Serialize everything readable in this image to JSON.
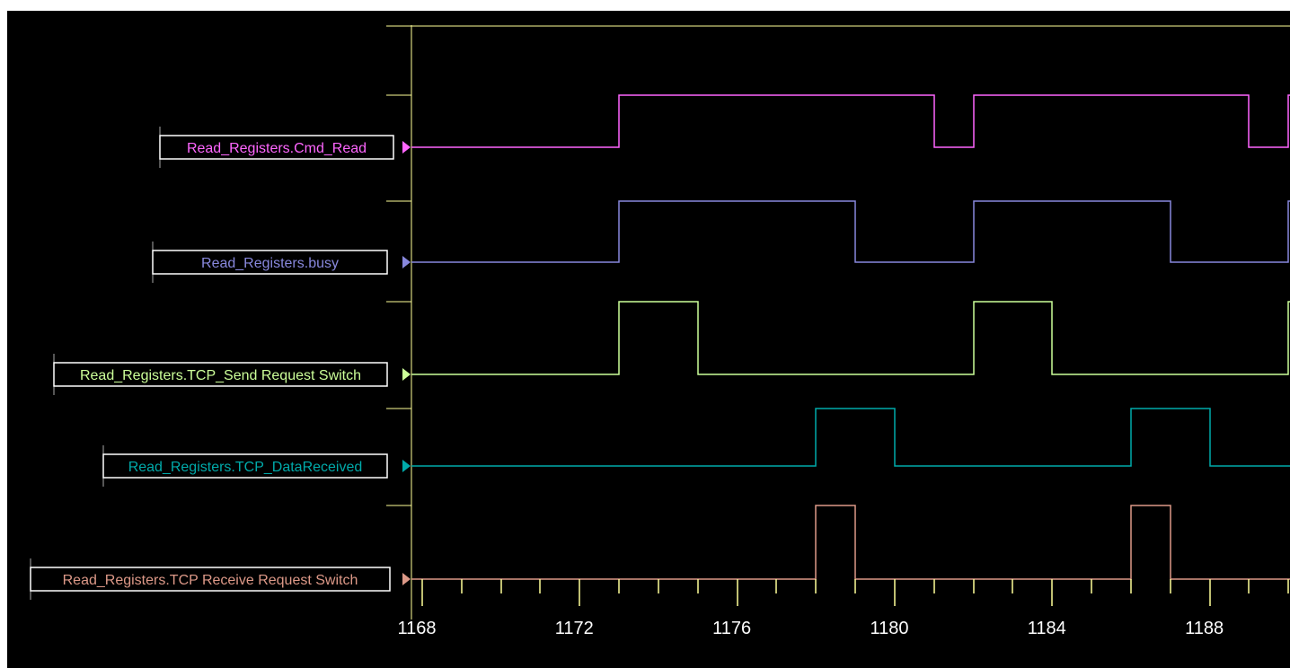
{
  "chart_data": {
    "type": "line",
    "title": "",
    "xlabel": "",
    "ylabel": "",
    "x_range": [
      1167,
      1191
    ],
    "x_ticks": [
      1168,
      1172,
      1176,
      1180,
      1184,
      1188
    ],
    "grid": false,
    "series": [
      {
        "name": "Read_Registers.Cmd_Read",
        "color": "#ff66ff",
        "transitions": [
          [
            1167,
            0
          ],
          [
            1173,
            1
          ],
          [
            1181,
            0
          ],
          [
            1182,
            1
          ],
          [
            1189,
            0
          ],
          [
            1190,
            1
          ]
        ]
      },
      {
        "name": "Read_Registers.busy",
        "color": "#8888dd",
        "transitions": [
          [
            1167,
            0
          ],
          [
            1173,
            1
          ],
          [
            1179,
            0
          ],
          [
            1182,
            1
          ],
          [
            1187,
            0
          ],
          [
            1190,
            1
          ]
        ]
      },
      {
        "name": "Read_Registers.TCP_Send Request Switch",
        "color": "#ccff99",
        "transitions": [
          [
            1167,
            0
          ],
          [
            1173,
            1
          ],
          [
            1175,
            0
          ],
          [
            1182,
            1
          ],
          [
            1184,
            0
          ],
          [
            1190,
            1
          ]
        ]
      },
      {
        "name": "Read_Registers.TCP_DataReceived",
        "color": "#00aaaa",
        "transitions": [
          [
            1167,
            0
          ],
          [
            1178,
            1
          ],
          [
            1180,
            0
          ],
          [
            1186,
            1
          ],
          [
            1188,
            0
          ]
        ]
      },
      {
        "name": "Read_Registers.TCP Receive Request Switch",
        "color": "#dd9988",
        "transitions": [
          [
            1167,
            0
          ],
          [
            1178,
            1
          ],
          [
            1179,
            0
          ],
          [
            1186,
            1
          ],
          [
            1187,
            0
          ]
        ]
      }
    ]
  },
  "colors": {
    "background": "#000000",
    "axis": "#ffff99"
  }
}
